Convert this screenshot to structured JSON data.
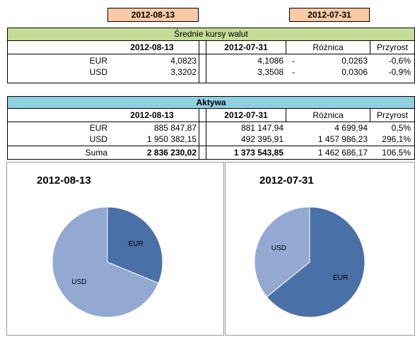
{
  "header_dates": {
    "current": "2012-08-13",
    "previous": "2012-07-31"
  },
  "rates": {
    "title": "Średnie kursy walut",
    "col_current": "2012-08-13",
    "col_previous": "2012-07-31",
    "col_diff": "Różnica",
    "col_growth": "Przyrost",
    "rows": [
      {
        "currency": "EUR",
        "current": "4,0823",
        "previous": "4,1086",
        "sign": "-",
        "diff": "0,0263",
        "growth": "-0,6%"
      },
      {
        "currency": "USD",
        "current": "3,3202",
        "previous": "3,3508",
        "sign": "-",
        "diff": "0,0306",
        "growth": "-0,9%"
      }
    ]
  },
  "assets": {
    "title": "Aktywa",
    "col_current": "2012-08-13",
    "col_previous": "2012-07-31",
    "col_diff": "Różnica",
    "col_growth": "Przyrost",
    "rows": [
      {
        "currency": "EUR",
        "current": "885 847,87",
        "previous": "881 147,94",
        "diff": "4 699,94",
        "growth": "0,5%"
      },
      {
        "currency": "USD",
        "current": "1 950 382,15",
        "previous": "492 395,91",
        "diff": "1 457 986,23",
        "growth": "296,1%"
      }
    ],
    "sum": {
      "label": "Suma",
      "current": "2 836 230,02",
      "previous": "1 373 543,85",
      "diff": "1 462 686,17",
      "growth": "106,5%"
    }
  },
  "chart_data": [
    {
      "type": "pie",
      "title": "2012-08-13",
      "categories": [
        "EUR",
        "USD"
      ],
      "values": [
        885847.87,
        1950382.15
      ],
      "colors": [
        "#4a70a8",
        "#93a9d2"
      ]
    },
    {
      "type": "pie",
      "title": "2012-07-31",
      "categories": [
        "EUR",
        "USD"
      ],
      "values": [
        881147.94,
        492395.91
      ],
      "colors": [
        "#4a70a8",
        "#93a9d2"
      ]
    }
  ],
  "colors": {
    "date_header": "#fac9a5",
    "rates_band": "#c4dc96",
    "assets_band": "#8fd0e0",
    "eur": "#4a70a8",
    "usd": "#93a9d2"
  }
}
